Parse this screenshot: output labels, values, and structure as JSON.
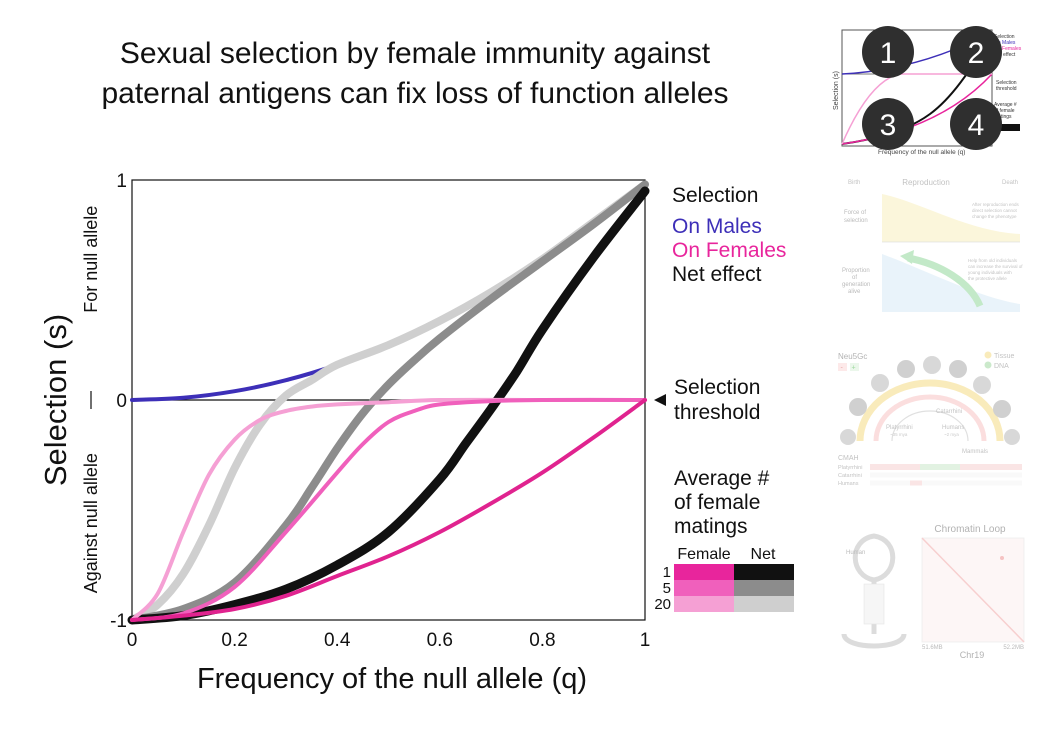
{
  "title_lines": [
    "Sexual selection by female immunity against",
    "paternal antigens can fix loss of function alleles"
  ],
  "chart_data": {
    "type": "line",
    "xlabel": "Frequency of the null allele (q)",
    "ylabel": "Selection (s)",
    "ylabel_upper": "For null allele",
    "ylabel_lower": "Against null allele",
    "xlim": [
      0,
      1
    ],
    "ylim": [
      -1,
      1
    ],
    "xticks": [
      "0",
      "0.2",
      "0.4",
      "0.6",
      "0.8",
      "1"
    ],
    "yticks": [
      "-1",
      "0",
      "1"
    ],
    "zero_line": true,
    "legend": {
      "title": "Selection",
      "entries": [
        {
          "label": "On Males",
          "color": "#3d2fb8"
        },
        {
          "label": "On Females",
          "color": "#e8259c"
        },
        {
          "label": "Net effect",
          "color": "#111111"
        }
      ]
    },
    "threshold_label": [
      "Selection",
      "threshold"
    ],
    "matings": {
      "title": [
        "Average #",
        "of female",
        "matings"
      ],
      "col_female": "Female",
      "col_net": "Net",
      "rows": [
        {
          "label": "1",
          "female_color": "#e8259c",
          "net_color": "#111111"
        },
        {
          "label": "5",
          "female_color": "#f060bc",
          "net_color": "#8c8c8c"
        },
        {
          "label": "20",
          "female_color": "#f5a0d4",
          "net_color": "#cfcfcf"
        }
      ]
    },
    "series": [
      {
        "name": "On Males",
        "color": "#3d2fb8",
        "width": 4,
        "x": [
          0,
          0.1,
          0.2,
          0.3,
          0.4,
          0.5,
          0.6,
          0.7,
          0.8,
          0.9,
          1
        ],
        "y": [
          0,
          0.01,
          0.04,
          0.09,
          0.16,
          0.25,
          0.36,
          0.49,
          0.64,
          0.81,
          0.98
        ]
      },
      {
        "name": "Net effect, 20 matings",
        "color": "#cfcfcf",
        "width": 8,
        "x": [
          0,
          0.05,
          0.1,
          0.15,
          0.2,
          0.25,
          0.3,
          0.35,
          0.4,
          0.5,
          0.6,
          0.7,
          0.8,
          0.9,
          1
        ],
        "y": [
          -1,
          -0.93,
          -0.79,
          -0.57,
          -0.31,
          -0.11,
          0.02,
          0.09,
          0.16,
          0.25,
          0.36,
          0.49,
          0.64,
          0.81,
          0.98
        ]
      },
      {
        "name": "Net effect, 5 matings",
        "color": "#8c8c8c",
        "width": 8,
        "x": [
          0,
          0.1,
          0.2,
          0.3,
          0.35,
          0.4,
          0.45,
          0.5,
          0.55,
          0.6,
          0.7,
          0.8,
          0.9,
          1
        ],
        "y": [
          -1,
          -0.95,
          -0.83,
          -0.57,
          -0.4,
          -0.22,
          -0.06,
          0.07,
          0.18,
          0.28,
          0.46,
          0.63,
          0.8,
          0.98
        ]
      },
      {
        "name": "Net effect, 1 mating",
        "color": "#111111",
        "width": 9,
        "x": [
          0,
          0.1,
          0.2,
          0.3,
          0.4,
          0.5,
          0.6,
          0.65,
          0.7,
          0.75,
          0.8,
          0.9,
          1
        ],
        "y": [
          -1,
          -0.98,
          -0.93,
          -0.86,
          -0.75,
          -0.6,
          -0.36,
          -0.2,
          -0.04,
          0.13,
          0.32,
          0.65,
          0.95
        ]
      },
      {
        "name": "On Females, 20 matings",
        "color": "#f5a0d4",
        "width": 4,
        "x": [
          0,
          0.05,
          0.1,
          0.15,
          0.2,
          0.25,
          0.3,
          0.35,
          0.4,
          0.5,
          0.6,
          0.8,
          1
        ],
        "y": [
          -1,
          -0.88,
          -0.6,
          -0.34,
          -0.18,
          -0.09,
          -0.05,
          -0.03,
          -0.02,
          -0.01,
          0,
          0,
          0
        ]
      },
      {
        "name": "On Females, 5 matings",
        "color": "#f060bc",
        "width": 4,
        "x": [
          0,
          0.1,
          0.2,
          0.3,
          0.4,
          0.45,
          0.5,
          0.55,
          0.6,
          0.7,
          0.8,
          1
        ],
        "y": [
          -1,
          -0.97,
          -0.85,
          -0.6,
          -0.33,
          -0.2,
          -0.1,
          -0.05,
          -0.02,
          -0.005,
          0,
          0
        ]
      },
      {
        "name": "On Females, 1 mating",
        "color": "#e0238f",
        "width": 4,
        "x": [
          0,
          0.1,
          0.2,
          0.3,
          0.4,
          0.5,
          0.6,
          0.7,
          0.8,
          0.9,
          1
        ],
        "y": [
          -1,
          -0.98,
          -0.95,
          -0.89,
          -0.8,
          -0.71,
          -0.6,
          -0.47,
          -0.33,
          -0.17,
          0
        ]
      }
    ]
  },
  "thumb1": {
    "numbers": [
      "1",
      "2",
      "3",
      "4"
    ],
    "ylabel": "Selection (s)",
    "xlabel": "Frequency of the null allele (q)",
    "legend": [
      "Selection",
      "On Males",
      "On Females",
      "Net effect"
    ],
    "threshold": [
      "Selection",
      "threshold"
    ],
    "avg": [
      "Average #",
      "of female",
      "matings"
    ]
  },
  "thumb2": {
    "header": [
      "Birth",
      "Reproduction",
      "Death"
    ],
    "row1_label": [
      "Force of",
      "selection"
    ],
    "row1_note": [
      "After reproduction ends",
      "direct selection cannot",
      "change the phenotype"
    ],
    "row2_label": [
      "Proportion",
      "of",
      "generation",
      "alive"
    ],
    "row2_note": [
      "Help from old individuals",
      "can increase the survival of",
      "young individuals with",
      "the protective allele"
    ]
  },
  "thumb3": {
    "gene": "Neu5Gc",
    "gene_flags": [
      "-",
      "+"
    ],
    "legend": [
      "Tissue",
      "DNA"
    ],
    "clades": [
      "Catarrhini",
      "Platyrrhini",
      "Humans",
      "Mammals"
    ],
    "ages": [
      "~35 mya",
      "~2 mya"
    ],
    "table_header": "CMAH",
    "table_rows": [
      "Platyrrhini",
      "Catarrhini",
      "Humans"
    ]
  },
  "thumb4": {
    "title": "Chromatin Loop",
    "left_label": "Human",
    "x_start": "51.6MB",
    "x_end": "52.2MB",
    "chrom": "Chr19"
  }
}
